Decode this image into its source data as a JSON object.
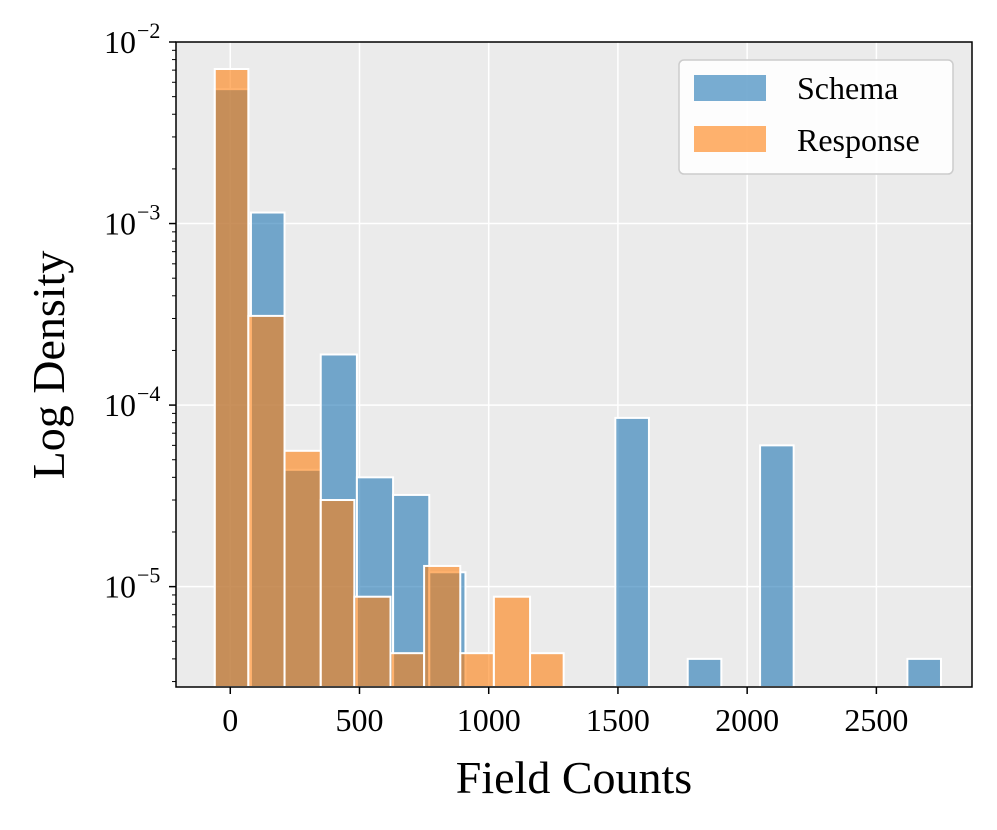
{
  "chart_data": {
    "type": "bar",
    "title": "",
    "xlabel": "Field Counts",
    "ylabel": "Log Density",
    "yscale": "log",
    "xlim": [
      -210,
      2870
    ],
    "ylim": [
      2.8e-06,
      0.01
    ],
    "grid": true,
    "legend_position": "top-right",
    "x_ticks": [
      {
        "value": 0,
        "label": "0"
      },
      {
        "value": 500,
        "label": "500"
      },
      {
        "value": 1000,
        "label": "1000"
      },
      {
        "value": 1500,
        "label": "1500"
      },
      {
        "value": 2000,
        "label": "2000"
      },
      {
        "value": 2500,
        "label": "2500"
      }
    ],
    "y_ticks": [
      {
        "value": 1e-05,
        "base": "10",
        "exp": "−5"
      },
      {
        "value": 0.0001,
        "base": "10",
        "exp": "−4"
      },
      {
        "value": 0.001,
        "base": "10",
        "exp": "−3"
      },
      {
        "value": 0.01,
        "base": "10",
        "exp": "−2"
      }
    ],
    "series": [
      {
        "name": "Schema",
        "color": "#1f77b4",
        "bins": [
          {
            "x0": -60,
            "x1": 70,
            "density": 0.0055
          },
          {
            "x0": 80,
            "x1": 210,
            "density": 0.00115
          },
          {
            "x0": 210,
            "x1": 350,
            "density": 4.4e-05
          },
          {
            "x0": 350,
            "x1": 490,
            "density": 0.00019
          },
          {
            "x0": 490,
            "x1": 630,
            "density": 4e-05
          },
          {
            "x0": 630,
            "x1": 770,
            "density": 3.2e-05
          },
          {
            "x0": 770,
            "x1": 910,
            "density": 1.2e-05
          },
          {
            "x0": 1490,
            "x1": 1620,
            "density": 8.5e-05
          },
          {
            "x0": 1770,
            "x1": 1900,
            "density": 4e-06
          },
          {
            "x0": 2050,
            "x1": 2180,
            "density": 6e-05
          },
          {
            "x0": 2620,
            "x1": 2750,
            "density": 4e-06
          }
        ]
      },
      {
        "name": "Response",
        "color": "#ff7f0e",
        "bins": [
          {
            "x0": -60,
            "x1": 70,
            "density": 0.0071
          },
          {
            "x0": 70,
            "x1": 210,
            "density": 0.00031
          },
          {
            "x0": 210,
            "x1": 350,
            "density": 5.6e-05
          },
          {
            "x0": 350,
            "x1": 480,
            "density": 3e-05
          },
          {
            "x0": 480,
            "x1": 620,
            "density": 8.8e-06
          },
          {
            "x0": 620,
            "x1": 750,
            "density": 4.3e-06
          },
          {
            "x0": 750,
            "x1": 890,
            "density": 1.3e-05
          },
          {
            "x0": 890,
            "x1": 1020,
            "density": 4.3e-06
          },
          {
            "x0": 1020,
            "x1": 1160,
            "density": 8.8e-06
          },
          {
            "x0": 1160,
            "x1": 1290,
            "density": 4.3e-06
          }
        ]
      }
    ]
  }
}
